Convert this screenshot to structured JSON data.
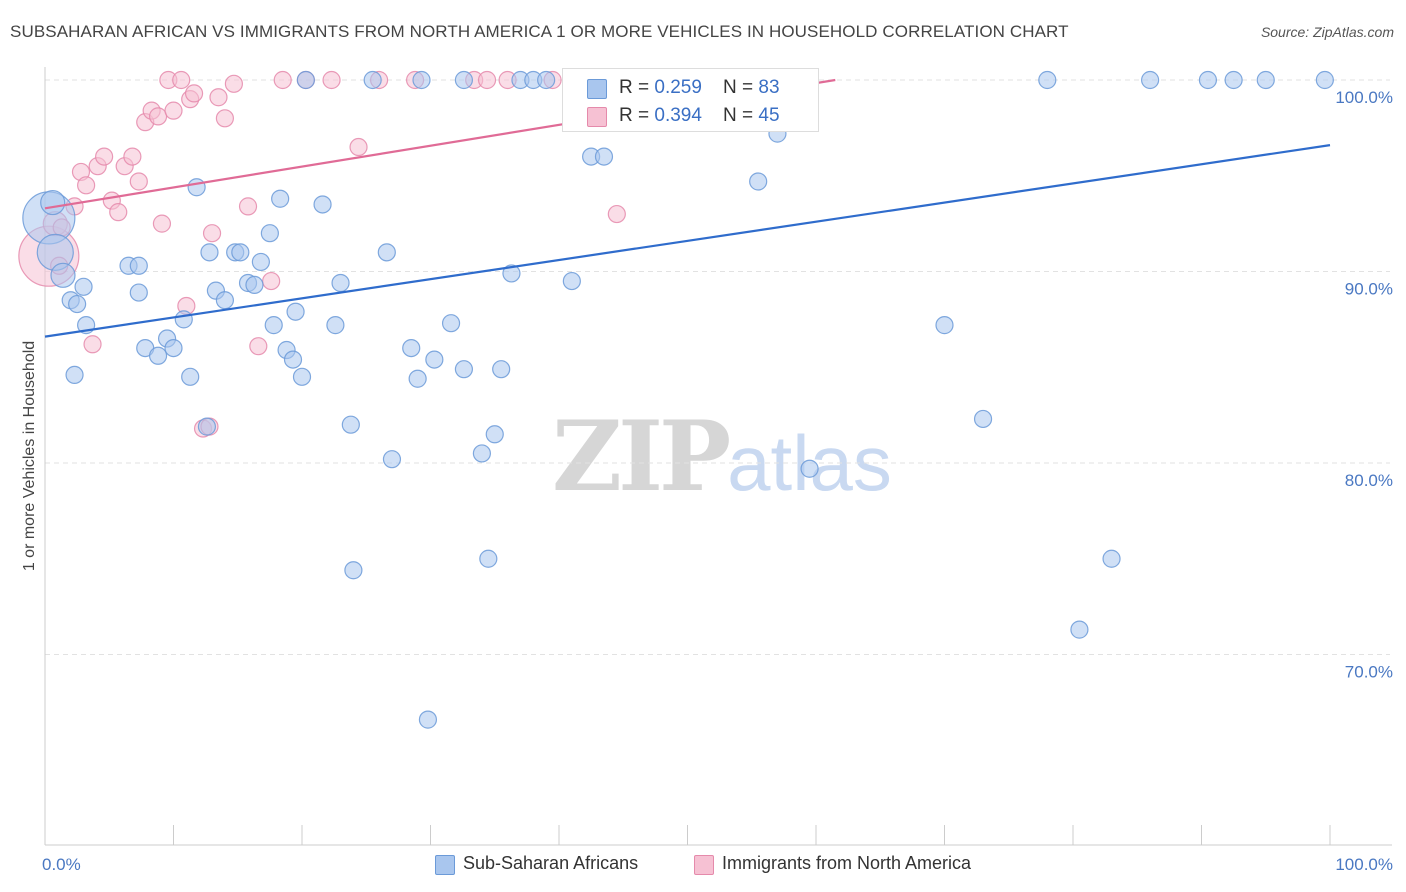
{
  "header": {
    "title": "SUBSAHARAN AFRICAN VS IMMIGRANTS FROM NORTH AMERICA 1 OR MORE VEHICLES IN HOUSEHOLD CORRELATION CHART",
    "source": "Source: ZipAtlas.com"
  },
  "watermark": {
    "zip": "ZIP",
    "atlas": "atlas"
  },
  "legend": {
    "rows": [
      {
        "r_label": "R = ",
        "r_value": "0.259",
        "n_label": "N = ",
        "n_value": "83"
      },
      {
        "r_label": "R = ",
        "r_value": "0.394",
        "n_label": "N = ",
        "n_value": "45"
      }
    ]
  },
  "bottom_legend": {
    "series_a": "Sub-Saharan Africans",
    "series_b": "Immigrants from North America"
  },
  "colors": {
    "blue_fill": "#a9c6ee",
    "blue_stroke": "#6b9ad8",
    "blue_line": "#2f6ccc",
    "pink_fill": "#f6c1d3",
    "pink_stroke": "#e58aab",
    "pink_line": "#e06b96",
    "grid": "#e2e2e2",
    "axis": "#cccccc"
  },
  "chart_data": {
    "type": "scatter",
    "title": "SUBSAHARAN AFRICAN VS IMMIGRANTS FROM NORTH AMERICA 1 OR MORE VEHICLES IN HOUSEHOLD CORRELATION CHART",
    "xlabel": "",
    "ylabel": "1 or more Vehicles in Household",
    "xlim": [
      0,
      100
    ],
    "ylim": [
      60,
      102
    ],
    "x_tick_labels": [
      "0.0%",
      "100.0%"
    ],
    "y_ticks": [
      70,
      80,
      90,
      100
    ],
    "y_tick_labels": [
      "70.0%",
      "80.0%",
      "90.0%",
      "100.0%"
    ],
    "grid": true,
    "legend_position": "top-center",
    "series": [
      {
        "name": "Sub-Saharan Africans",
        "R": 0.259,
        "N": 83,
        "trend": {
          "x": [
            0,
            100
          ],
          "y": [
            86.6,
            96.6
          ]
        },
        "points": [
          [
            0.3,
            92.8,
            26
          ],
          [
            0.8,
            91.0,
            18
          ],
          [
            1.4,
            89.8,
            12
          ],
          [
            0.6,
            93.6,
            12
          ],
          [
            2.3,
            84.6,
            10
          ],
          [
            2.0,
            88.5,
            10
          ],
          [
            3.2,
            87.2,
            10
          ],
          [
            2.5,
            88.3,
            10
          ],
          [
            3.0,
            89.2,
            10
          ],
          [
            6.5,
            90.3,
            10
          ],
          [
            7.3,
            88.9,
            10
          ],
          [
            7.8,
            86.0,
            10
          ],
          [
            8.8,
            85.6,
            10
          ],
          [
            9.5,
            86.5,
            10
          ],
          [
            10.0,
            86.0,
            10
          ],
          [
            10.8,
            87.5,
            10
          ],
          [
            11.3,
            84.5,
            10
          ],
          [
            11.8,
            94.4,
            10
          ],
          [
            12.6,
            81.9,
            10
          ],
          [
            12.8,
            91.0,
            10
          ],
          [
            13.3,
            89.0,
            10
          ],
          [
            14.0,
            88.5,
            10
          ],
          [
            14.8,
            91.0,
            10
          ],
          [
            15.2,
            91.0,
            10
          ],
          [
            15.8,
            89.4,
            10
          ],
          [
            16.3,
            89.3,
            10
          ],
          [
            16.8,
            90.5,
            10
          ],
          [
            17.5,
            92.0,
            10
          ],
          [
            17.8,
            87.2,
            10
          ],
          [
            18.3,
            93.8,
            10
          ],
          [
            18.8,
            85.9,
            10
          ],
          [
            19.3,
            85.4,
            10
          ],
          [
            19.5,
            87.9,
            10
          ],
          [
            20.0,
            84.5,
            10
          ],
          [
            21.6,
            93.5,
            10
          ],
          [
            20.3,
            100,
            10
          ],
          [
            22.6,
            87.2,
            10
          ],
          [
            23.0,
            89.4,
            10
          ],
          [
            23.8,
            82.0,
            10
          ],
          [
            24.0,
            74.4,
            10
          ],
          [
            25.5,
            100,
            10
          ],
          [
            26.6,
            91.0,
            10
          ],
          [
            27.0,
            80.2,
            10
          ],
          [
            28.5,
            86.0,
            10
          ],
          [
            29.0,
            84.4,
            10
          ],
          [
            29.3,
            100,
            10
          ],
          [
            29.8,
            66.6,
            10
          ],
          [
            30.3,
            85.4,
            10
          ],
          [
            31.6,
            87.3,
            10
          ],
          [
            32.6,
            84.9,
            10
          ],
          [
            32.6,
            100,
            10
          ],
          [
            34.0,
            80.5,
            10
          ],
          [
            34.5,
            75.0,
            10
          ],
          [
            35.0,
            81.5,
            10
          ],
          [
            35.5,
            84.9,
            10
          ],
          [
            36.3,
            89.9,
            10
          ],
          [
            37.0,
            100,
            10
          ],
          [
            38.0,
            100,
            10
          ],
          [
            39.0,
            100,
            10
          ],
          [
            41.0,
            100,
            10
          ],
          [
            41.0,
            89.5,
            10
          ],
          [
            42.5,
            96.0,
            10
          ],
          [
            43.5,
            96.0,
            10
          ],
          [
            44.5,
            100,
            10
          ],
          [
            47.5,
            100,
            10
          ],
          [
            49.0,
            100,
            10
          ],
          [
            50.0,
            100,
            10
          ],
          [
            50.5,
            100,
            10
          ],
          [
            51.0,
            100,
            10
          ],
          [
            55.5,
            94.7,
            10
          ],
          [
            57.0,
            97.2,
            10
          ],
          [
            59.5,
            79.7,
            10
          ],
          [
            70.0,
            87.2,
            10
          ],
          [
            73.0,
            82.3,
            10
          ],
          [
            78.0,
            100,
            10
          ],
          [
            80.5,
            71.3,
            10
          ],
          [
            83.0,
            75.0,
            10
          ],
          [
            86.0,
            100,
            10
          ],
          [
            90.5,
            100,
            10
          ],
          [
            92.5,
            100,
            10
          ],
          [
            95.0,
            100,
            10
          ],
          [
            99.6,
            100,
            10
          ],
          [
            7.3,
            90.3,
            10
          ]
        ]
      },
      {
        "name": "Immigrants from North America",
        "R": 0.394,
        "N": 45,
        "trend": {
          "x": [
            0,
            61.5
          ],
          "y": [
            93.3,
            100
          ]
        },
        "points": [
          [
            0.3,
            90.8,
            30
          ],
          [
            0.8,
            92.5,
            12
          ],
          [
            1.3,
            92.3,
            10
          ],
          [
            1.1,
            90.3,
            10
          ],
          [
            2.3,
            93.4,
            10
          ],
          [
            2.8,
            95.2,
            10
          ],
          [
            3.2,
            94.5,
            10
          ],
          [
            3.7,
            86.2,
            10
          ],
          [
            4.1,
            95.5,
            10
          ],
          [
            4.6,
            96.0,
            10
          ],
          [
            5.2,
            93.7,
            10
          ],
          [
            5.7,
            93.1,
            10
          ],
          [
            6.2,
            95.5,
            10
          ],
          [
            6.8,
            96.0,
            10
          ],
          [
            7.3,
            94.7,
            10
          ],
          [
            7.8,
            97.8,
            10
          ],
          [
            8.3,
            98.4,
            10
          ],
          [
            8.8,
            98.1,
            10
          ],
          [
            9.1,
            92.5,
            10
          ],
          [
            9.6,
            100,
            10
          ],
          [
            10.0,
            98.4,
            10
          ],
          [
            10.6,
            100,
            10
          ],
          [
            11.3,
            99.0,
            10
          ],
          [
            11.6,
            99.3,
            10
          ],
          [
            11.0,
            88.2,
            10
          ],
          [
            12.3,
            81.8,
            10
          ],
          [
            12.8,
            81.9,
            10
          ],
          [
            13.0,
            92.0,
            10
          ],
          [
            13.5,
            99.1,
            10
          ],
          [
            14.0,
            98.0,
            10
          ],
          [
            14.7,
            99.8,
            10
          ],
          [
            15.8,
            93.4,
            10
          ],
          [
            16.6,
            86.1,
            10
          ],
          [
            17.6,
            89.5,
            10
          ],
          [
            18.5,
            100,
            10
          ],
          [
            20.3,
            100,
            10
          ],
          [
            22.3,
            100,
            10
          ],
          [
            24.4,
            96.5,
            10
          ],
          [
            26.0,
            100,
            10
          ],
          [
            28.8,
            100,
            10
          ],
          [
            33.4,
            100,
            10
          ],
          [
            34.4,
            100,
            10
          ],
          [
            36.0,
            100,
            10
          ],
          [
            39.5,
            100,
            10
          ],
          [
            44.5,
            93.0,
            10
          ]
        ]
      }
    ]
  }
}
